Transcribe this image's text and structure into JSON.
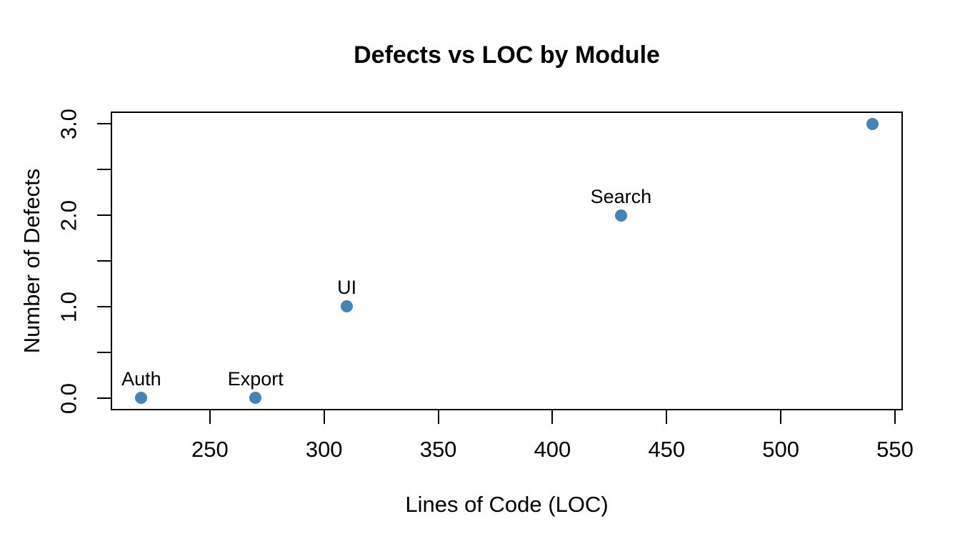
{
  "figure": {
    "background_color": "#ffffff",
    "text_color": "#000000"
  },
  "chart_data": {
    "type": "scatter",
    "title": "Defects vs LOC by Module",
    "xlabel": "Lines of Code (LOC)",
    "ylabel": "Number of Defects",
    "points": [
      {
        "module": "Auth",
        "loc": 220,
        "defects": 0
      },
      {
        "module": "Export",
        "loc": 270,
        "defects": 0
      },
      {
        "module": "UI",
        "loc": 310,
        "defects": 1
      },
      {
        "module": "Search",
        "loc": 430,
        "defects": 2
      },
      {
        "module": "",
        "loc": 540,
        "defects": 3
      }
    ],
    "x_ticks": [
      250,
      300,
      350,
      400,
      450,
      500,
      550
    ],
    "x_tick_labels": [
      "250",
      "300",
      "350",
      "400",
      "450",
      "500",
      "550"
    ],
    "y_ticks": [
      0,
      0.5,
      1,
      1.5,
      2,
      2.5,
      3
    ],
    "y_tick_labels": [
      "0.0",
      "",
      "1.0",
      "",
      "2.0",
      "",
      "3.0"
    ],
    "xlim": [
      207.2,
      552.8
    ],
    "ylim": [
      -0.12,
      3.12
    ],
    "point_color": "#4682B4",
    "axis_color": "#000000",
    "grid": false,
    "legend": null
  }
}
